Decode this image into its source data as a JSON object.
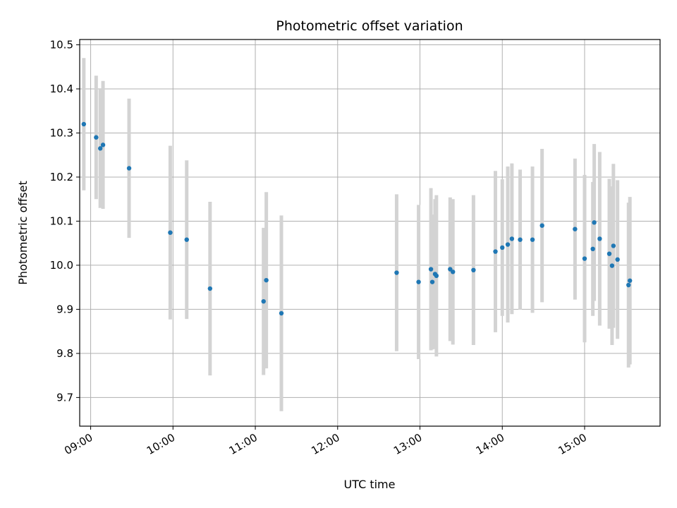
{
  "chart_data": {
    "type": "scatter",
    "title": "Photometric offset variation",
    "xlabel": "UTC time",
    "ylabel": "Photometric offset",
    "grid": true,
    "legend": "none",
    "xlim": [
      "08:52",
      "15:55"
    ],
    "ylim": [
      9.635,
      10.512
    ],
    "x_ticks": [
      "09:00",
      "10:00",
      "11:00",
      "12:00",
      "13:00",
      "14:00",
      "15:00"
    ],
    "y_ticks": [
      9.7,
      9.8,
      9.9,
      10.0,
      10.1,
      10.2,
      10.3,
      10.4,
      10.5
    ],
    "series": [
      {
        "colors": {
          "point": "#1f77b4",
          "errorbar": "#d3d3d3"
        },
        "points": [
          {
            "x": "08:55",
            "y": 10.32,
            "err": 0.15
          },
          {
            "x": "09:04",
            "y": 10.29,
            "err": 0.14
          },
          {
            "x": "09:07",
            "y": 10.265,
            "err": 0.135
          },
          {
            "x": "09:09",
            "y": 10.273,
            "err": 0.145
          },
          {
            "x": "09:28",
            "y": 10.22,
            "err": 0.158
          },
          {
            "x": "09:58",
            "y": 10.074,
            "err": 0.197
          },
          {
            "x": "10:10",
            "y": 10.058,
            "err": 0.18
          },
          {
            "x": "10:27",
            "y": 9.947,
            "err": 0.197
          },
          {
            "x": "11:06",
            "y": 9.918,
            "err": 0.167
          },
          {
            "x": "11:08",
            "y": 9.966,
            "err": 0.2
          },
          {
            "x": "11:19",
            "y": 9.891,
            "err": 0.222
          },
          {
            "x": "12:43",
            "y": 9.983,
            "err": 0.178
          },
          {
            "x": "12:59",
            "y": 9.962,
            "err": 0.175
          },
          {
            "x": "13:08",
            "y": 9.991,
            "err": 0.184
          },
          {
            "x": "13:09",
            "y": 9.962,
            "err": 0.153
          },
          {
            "x": "13:11",
            "y": 9.98,
            "err": 0.17
          },
          {
            "x": "13:12",
            "y": 9.976,
            "err": 0.183
          },
          {
            "x": "13:22",
            "y": 9.991,
            "err": 0.163
          },
          {
            "x": "13:24",
            "y": 9.985,
            "err": 0.165
          },
          {
            "x": "13:39",
            "y": 9.989,
            "err": 0.17
          },
          {
            "x": "13:55",
            "y": 10.031,
            "err": 0.183
          },
          {
            "x": "14:00",
            "y": 10.04,
            "err": 0.155
          },
          {
            "x": "14:04",
            "y": 10.047,
            "err": 0.177
          },
          {
            "x": "14:07",
            "y": 10.06,
            "err": 0.171
          },
          {
            "x": "14:13",
            "y": 10.058,
            "err": 0.159
          },
          {
            "x": "14:22",
            "y": 10.058,
            "err": 0.166
          },
          {
            "x": "14:29",
            "y": 10.09,
            "err": 0.174
          },
          {
            "x": "14:53",
            "y": 10.082,
            "err": 0.16
          },
          {
            "x": "15:00",
            "y": 10.015,
            "err": 0.19
          },
          {
            "x": "15:06",
            "y": 10.037,
            "err": 0.152
          },
          {
            "x": "15:07",
            "y": 10.097,
            "err": 0.178
          },
          {
            "x": "15:11",
            "y": 10.06,
            "err": 0.197
          },
          {
            "x": "15:18",
            "y": 10.026,
            "err": 0.17
          },
          {
            "x": "15:20",
            "y": 9.999,
            "err": 0.18
          },
          {
            "x": "15:21",
            "y": 10.044,
            "err": 0.186
          },
          {
            "x": "15:24",
            "y": 10.013,
            "err": 0.18
          },
          {
            "x": "15:32",
            "y": 9.955,
            "err": 0.187
          },
          {
            "x": "15:33",
            "y": 9.965,
            "err": 0.19
          }
        ]
      }
    ]
  }
}
